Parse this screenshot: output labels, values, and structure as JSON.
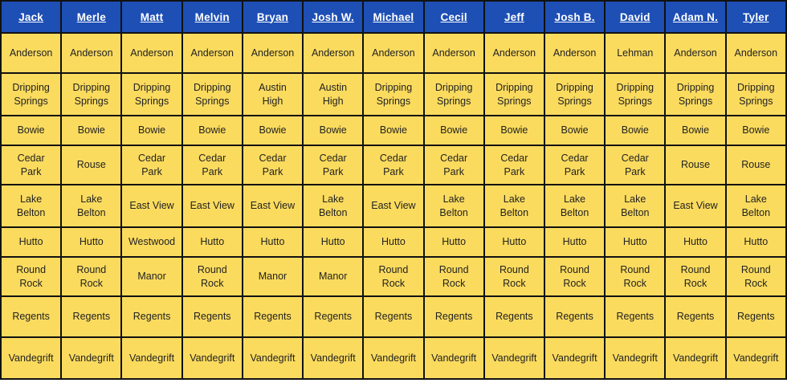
{
  "colors": {
    "header_bg": "#1d4fb5",
    "header_text": "#ffffff",
    "cell_bg": "#fbdb5e",
    "cell_text": "#222222",
    "border": "#111111",
    "page_bg": "#ffffff"
  },
  "chart_data": {
    "type": "table",
    "title": "",
    "columns": [
      "Jack",
      "Merle",
      "Matt",
      "Melvin",
      "Bryan",
      "Josh W.",
      "Michael",
      "Cecil",
      "Jeff",
      "Josh B.",
      "David",
      "Adam N.",
      "Tyler"
    ],
    "rows": [
      [
        "Anderson",
        "Anderson",
        "Anderson",
        "Anderson",
        "Anderson",
        "Anderson",
        "Anderson",
        "Anderson",
        "Anderson",
        "Anderson",
        "Lehman",
        "Anderson",
        "Anderson"
      ],
      [
        "Dripping\nSprings",
        "Dripping\nSprings",
        "Dripping\nSprings",
        "Dripping\nSprings",
        "Austin\nHigh",
        "Austin\nHigh",
        "Dripping\nSprings",
        "Dripping\nSprings",
        "Dripping\nSprings",
        "Dripping\nSprings",
        "Dripping\nSprings",
        "Dripping\nSprings",
        "Dripping\nSprings"
      ],
      [
        "Bowie",
        "Bowie",
        "Bowie",
        "Bowie",
        "Bowie",
        "Bowie",
        "Bowie",
        "Bowie",
        "Bowie",
        "Bowie",
        "Bowie",
        "Bowie",
        "Bowie"
      ],
      [
        "Cedar\nPark",
        "Rouse",
        "Cedar\nPark",
        "Cedar\nPark",
        "Cedar\nPark",
        "Cedar\nPark",
        "Cedar\nPark",
        "Cedar\nPark",
        "Cedar\nPark",
        "Cedar\nPark",
        "Cedar\nPark",
        "Rouse",
        "Rouse"
      ],
      [
        "Lake\nBelton",
        "Lake\nBelton",
        "East View",
        "East View",
        "East View",
        "Lake\nBelton",
        "East View",
        "Lake\nBelton",
        "Lake\nBelton",
        "Lake\nBelton",
        "Lake\nBelton",
        "East View",
        "Lake\nBelton"
      ],
      [
        "Hutto",
        "Hutto",
        "Westwood",
        "Hutto",
        "Hutto",
        "Hutto",
        "Hutto",
        "Hutto",
        "Hutto",
        "Hutto",
        "Hutto",
        "Hutto",
        "Hutto"
      ],
      [
        "Round\nRock",
        "Round\nRock",
        "Manor",
        "Round\nRock",
        "Manor",
        "Manor",
        "Round\nRock",
        "Round\nRock",
        "Round\nRock",
        "Round\nRock",
        "Round\nRock",
        "Round\nRock",
        "Round\nRock"
      ],
      [
        "Regents",
        "Regents",
        "Regents",
        "Regents",
        "Regents",
        "Regents",
        "Regents",
        "Regents",
        "Regents",
        "Regents",
        "Regents",
        "Regents",
        "Regents"
      ],
      [
        "Vandegrift",
        "Vandegrift",
        "Vandegrift",
        "Vandegrift",
        "Vandegrift",
        "Vandegrift",
        "Vandegrift",
        "Vandegrift",
        "Vandegrift",
        "Vandegrift",
        "Vandegrift",
        "Vandegrift",
        "Vandegrift"
      ]
    ]
  }
}
